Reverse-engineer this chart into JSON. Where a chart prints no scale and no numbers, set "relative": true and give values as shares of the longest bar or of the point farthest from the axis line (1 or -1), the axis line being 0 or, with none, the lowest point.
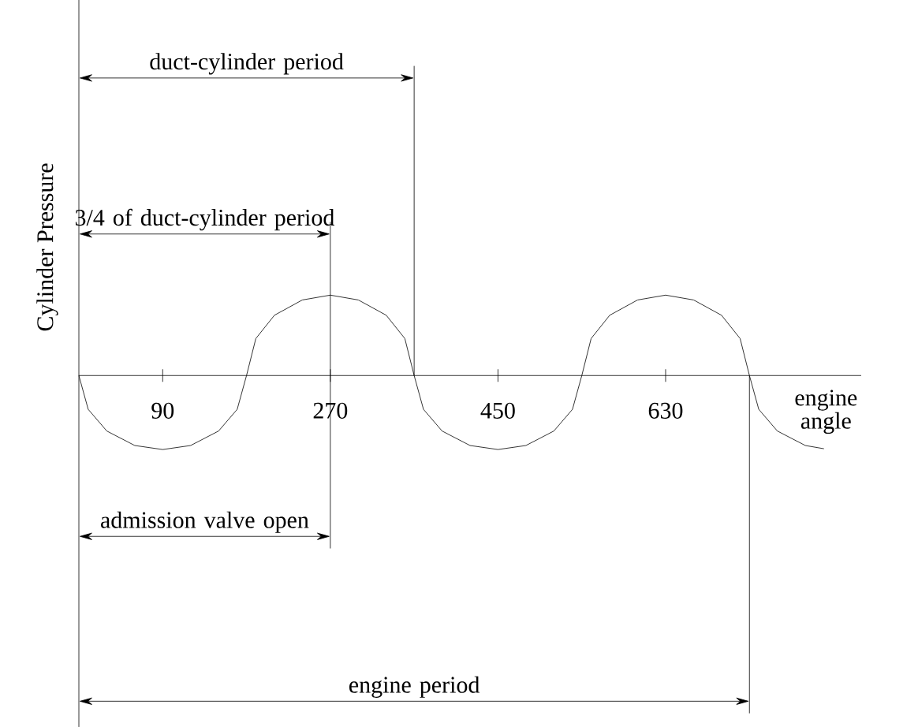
{
  "chart_data": {
    "type": "line",
    "relative": true,
    "xlabel": "engine angle",
    "ylabel": "Cylinder Pressure",
    "color": "#000000",
    "x": [
      0,
      10,
      30,
      60,
      90,
      120,
      150,
      170,
      180,
      190,
      210,
      240,
      270,
      300,
      330,
      350,
      360,
      370,
      390,
      420,
      450,
      480,
      510,
      530,
      540,
      550,
      570,
      600,
      630,
      660,
      690,
      710,
      720,
      730,
      750,
      780,
      800
    ],
    "values": [
      0,
      -0.42,
      -0.69,
      -0.87,
      -0.92,
      -0.87,
      -0.69,
      -0.42,
      0,
      0.46,
      0.75,
      0.94,
      1,
      0.94,
      0.75,
      0.46,
      0,
      -0.42,
      -0.69,
      -0.87,
      -0.92,
      -0.87,
      -0.69,
      -0.42,
      0,
      0.46,
      0.75,
      0.94,
      1,
      0.94,
      0.75,
      0.46,
      0,
      -0.42,
      -0.69,
      -0.87,
      -0.91
    ],
    "xlim": [
      0,
      840
    ],
    "xticks": [
      90,
      270,
      450,
      630
    ],
    "ref_lines": [
      {
        "axis": "x",
        "value": 360
      },
      {
        "axis": "x",
        "value": 270
      },
      {
        "axis": "x",
        "value": 720
      }
    ],
    "annotations": [
      "duct-cylinder period",
      "3/4 of duct-cylinder period",
      "admission valve open",
      "engine period"
    ]
  }
}
